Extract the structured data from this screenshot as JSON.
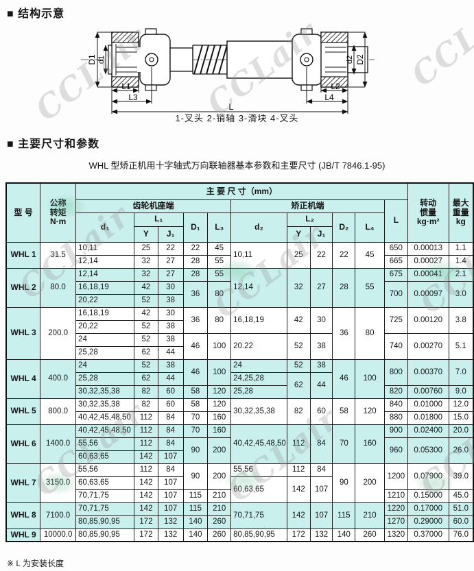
{
  "watermark": {
    "text": "CCLair"
  },
  "sections": {
    "structure_heading": "■ 结构示意",
    "params_heading": "■ 主要尺寸和参数"
  },
  "drawing": {
    "caption": "1-叉头  2-销轴  3-滑块  4-叉头",
    "dim_labels": {
      "D1": "D1",
      "d1": "d1",
      "L1": "L1",
      "L3": "L3",
      "L": "L",
      "L2": "L2",
      "L4": "L4",
      "d2": "d2",
      "D2": "D2"
    }
  },
  "table": {
    "title": "WHL 型矫正机用十字轴式万向联轴器基本参数和主要尺寸 (JB/T 7846.1-95)",
    "footnote": "※ L 为安装长度",
    "header_rows": [
      {
        "cells": [
          {
            "t": "型 号",
            "rs": 4,
            "name": "header-model"
          },
          {
            "t": "公称\n转矩\nN·m",
            "rs": 4,
            "name": "header-torque"
          },
          {
            "t": "主 要 尺 寸（mm）",
            "cs": 11,
            "name": "header-main-dims"
          },
          {
            "t": "转动\n惯量\nkg·m²",
            "rs": 4,
            "name": "header-inertia"
          },
          {
            "t": "最大\n重量\nkg",
            "rs": 4,
            "name": "header-max-weight"
          }
        ]
      },
      {
        "cells": [
          {
            "t": "齿轮机座端",
            "cs": 5,
            "name": "header-gear-end"
          },
          {
            "t": "矫正机端",
            "cs": 5,
            "name": "header-straightener-end"
          },
          {
            "t": "L",
            "rs": 3,
            "name": "header-L"
          }
        ]
      },
      {
        "cells": [
          {
            "t": "d₁",
            "rs": 2
          },
          {
            "t": "L₁",
            "cs": 2
          },
          {
            "t": "D₁",
            "rs": 2
          },
          {
            "t": "L₃",
            "rs": 2
          },
          {
            "t": "d₂",
            "rs": 2
          },
          {
            "t": "L₂",
            "cs": 2
          },
          {
            "t": "D₂",
            "rs": 2
          },
          {
            "t": "L₄",
            "rs": 2
          }
        ]
      },
      {
        "cells": [
          {
            "t": "Y"
          },
          {
            "t": "J₁"
          },
          {
            "t": "Y"
          },
          {
            "t": "J₁"
          }
        ]
      }
    ],
    "body_rows": [
      {
        "bg": "w",
        "cells": [
          {
            "t": "WHL 1",
            "rs": 2,
            "cls": "model"
          },
          {
            "t": "31.5",
            "rs": 2
          },
          {
            "t": "10,11",
            "cls": "dl"
          },
          {
            "t": "25"
          },
          {
            "t": "22"
          },
          {
            "t": "22"
          },
          {
            "t": "45"
          },
          {
            "t": "10,11",
            "rs": 2,
            "cls": "dl"
          },
          {
            "t": "25",
            "rs": 2
          },
          {
            "t": "22",
            "rs": 2
          },
          {
            "t": "22",
            "rs": 2
          },
          {
            "t": "45",
            "rs": 2
          },
          {
            "t": "650"
          },
          {
            "t": "0.00013"
          },
          {
            "t": "1.1"
          }
        ]
      },
      {
        "bg": "w",
        "cells": [
          {
            "t": "12,14",
            "cls": "dl"
          },
          {
            "t": "32"
          },
          {
            "t": "27"
          },
          {
            "t": "28"
          },
          {
            "t": "55"
          },
          {
            "t": "665"
          },
          {
            "t": "0.00027"
          },
          {
            "t": "1.4"
          }
        ]
      },
      {
        "bg": "c",
        "cells": [
          {
            "t": "WHL 2",
            "rs": 3,
            "cls": "model"
          },
          {
            "t": "80.0",
            "rs": 3
          },
          {
            "t": "12,14",
            "cls": "dl"
          },
          {
            "t": "32"
          },
          {
            "t": "27"
          },
          {
            "t": "28"
          },
          {
            "t": "55"
          },
          {
            "t": "12,14",
            "rs": 3,
            "cls": "dl"
          },
          {
            "t": "32",
            "rs": 3
          },
          {
            "t": "27",
            "rs": 3
          },
          {
            "t": "28",
            "rs": 3
          },
          {
            "t": "55",
            "rs": 3
          },
          {
            "t": "675"
          },
          {
            "t": "0.00041"
          },
          {
            "t": "2.1"
          }
        ]
      },
      {
        "bg": "c",
        "cells": [
          {
            "t": "16,18,19",
            "cls": "dl"
          },
          {
            "t": "42"
          },
          {
            "t": "30"
          },
          {
            "t": "36",
            "rs": 2
          },
          {
            "t": "80",
            "rs": 2
          },
          {
            "t": "700",
            "rs": 2
          },
          {
            "t": "0.00097",
            "rs": 2
          },
          {
            "t": "3.0",
            "rs": 2
          }
        ]
      },
      {
        "bg": "c",
        "cells": [
          {
            "t": "20,22",
            "cls": "dl"
          },
          {
            "t": "52"
          },
          {
            "t": "38"
          }
        ]
      },
      {
        "bg": "w",
        "cells": [
          {
            "t": "WHL 3",
            "rs": 4,
            "cls": "model"
          },
          {
            "t": "200.0",
            "rs": 4
          },
          {
            "t": "16,18,19",
            "cls": "dl"
          },
          {
            "t": "42"
          },
          {
            "t": "30"
          },
          {
            "t": "36",
            "rs": 2
          },
          {
            "t": "80",
            "rs": 2
          },
          {
            "t": "16,18,19",
            "rs": 2,
            "cls": "dl"
          },
          {
            "t": "42",
            "rs": 2
          },
          {
            "t": "30",
            "rs": 2
          },
          {
            "t": "36",
            "rs": 4
          },
          {
            "t": "80",
            "rs": 4
          },
          {
            "t": "725",
            "rs": 2
          },
          {
            "t": "0.00120",
            "rs": 2
          },
          {
            "t": "3.8",
            "rs": 2
          }
        ]
      },
      {
        "bg": "w",
        "cells": [
          {
            "t": "20,22",
            "cls": "dl"
          },
          {
            "t": "52"
          },
          {
            "t": "38"
          }
        ]
      },
      {
        "bg": "w",
        "cells": [
          {
            "t": "24",
            "cls": "dl"
          },
          {
            "t": "52"
          },
          {
            "t": "38"
          },
          {
            "t": "46",
            "rs": 2
          },
          {
            "t": "100",
            "rs": 2
          },
          {
            "t": "20.22",
            "rs": 2,
            "cls": "dl"
          },
          {
            "t": "52",
            "rs": 2
          },
          {
            "t": "38",
            "rs": 2
          },
          {
            "t": "740",
            "rs": 2
          },
          {
            "t": "0.00270",
            "rs": 2
          },
          {
            "t": "5.1",
            "rs": 2
          }
        ]
      },
      {
        "bg": "w",
        "cells": [
          {
            "t": "25,28",
            "cls": "dl"
          },
          {
            "t": "62"
          },
          {
            "t": "44"
          }
        ]
      },
      {
        "bg": "c",
        "cells": [
          {
            "t": "WHL 4",
            "rs": 3,
            "cls": "model"
          },
          {
            "t": "400.0",
            "rs": 3
          },
          {
            "t": "24",
            "cls": "dl"
          },
          {
            "t": "52"
          },
          {
            "t": "38"
          },
          {
            "t": "46",
            "rs": 2
          },
          {
            "t": "100",
            "rs": 2
          },
          {
            "t": "24",
            "cls": "dl"
          },
          {
            "t": "52"
          },
          {
            "t": "38"
          },
          {
            "t": "46",
            "rs": 3
          },
          {
            "t": "100",
            "rs": 3
          },
          {
            "t": "800",
            "rs": 2
          },
          {
            "t": "0.00370",
            "rs": 2
          },
          {
            "t": "7.0",
            "rs": 2
          }
        ]
      },
      {
        "bg": "c",
        "cells": [
          {
            "t": "25,28",
            "cls": "dl"
          },
          {
            "t": "62"
          },
          {
            "t": "44"
          },
          {
            "t": "24,25,28",
            "cls": "dl"
          },
          {
            "t": "62",
            "rs": 2
          },
          {
            "t": "44",
            "rs": 2
          }
        ]
      },
      {
        "bg": "c",
        "cells": [
          {
            "t": "30,32,35,38",
            "cls": "dl"
          },
          {
            "t": "82"
          },
          {
            "t": "60"
          },
          {
            "t": "58"
          },
          {
            "t": "120"
          },
          {
            "t": "25,28",
            "cls": "dl"
          },
          {
            "t": "820"
          },
          {
            "t": "0.00760"
          },
          {
            "t": "9.0"
          }
        ]
      },
      {
        "bg": "w",
        "cells": [
          {
            "t": "WHL 5",
            "rs": 2,
            "cls": "model"
          },
          {
            "t": "800.0",
            "rs": 2
          },
          {
            "t": "30,32,35,38",
            "cls": "dl"
          },
          {
            "t": "82"
          },
          {
            "t": "60"
          },
          {
            "t": "58"
          },
          {
            "t": "120"
          },
          {
            "t": "30,32,35,38",
            "rs": 2,
            "cls": "dl"
          },
          {
            "t": "82",
            "rs": 2
          },
          {
            "t": "60",
            "rs": 2
          },
          {
            "t": "58",
            "rs": 2
          },
          {
            "t": "120",
            "rs": 2
          },
          {
            "t": "840"
          },
          {
            "t": "0.01000"
          },
          {
            "t": "12.0"
          }
        ]
      },
      {
        "bg": "w",
        "cells": [
          {
            "t": "40,42,45,48,50",
            "cls": "dl"
          },
          {
            "t": "112"
          },
          {
            "t": "84"
          },
          {
            "t": "70"
          },
          {
            "t": "160"
          },
          {
            "t": "880"
          },
          {
            "t": "0.01800"
          },
          {
            "t": "15.0"
          }
        ]
      },
      {
        "bg": "c",
        "cells": [
          {
            "t": "WHL 6",
            "rs": 3,
            "cls": "model"
          },
          {
            "t": "1400.0",
            "rs": 3
          },
          {
            "t": "40,42,45,48,50",
            "cls": "dl"
          },
          {
            "t": "112"
          },
          {
            "t": "84"
          },
          {
            "t": "70"
          },
          {
            "t": "160"
          },
          {
            "t": "40,42,45,48,50",
            "rs": 3,
            "cls": "dl"
          },
          {
            "t": "112",
            "rs": 3
          },
          {
            "t": "84",
            "rs": 3
          },
          {
            "t": "70",
            "rs": 3
          },
          {
            "t": "160",
            "rs": 3
          },
          {
            "t": "900"
          },
          {
            "t": "0.02400"
          },
          {
            "t": "20.0"
          }
        ]
      },
      {
        "bg": "c",
        "cells": [
          {
            "t": "55,56",
            "cls": "dl"
          },
          {
            "t": "112"
          },
          {
            "t": "84"
          },
          {
            "t": "90",
            "rs": 2
          },
          {
            "t": "200",
            "rs": 2
          },
          {
            "t": "960",
            "rs": 2
          },
          {
            "t": "0.05300",
            "rs": 2
          },
          {
            "t": "26.0",
            "rs": 2
          }
        ]
      },
      {
        "bg": "c",
        "cells": [
          {
            "t": "60,63,65",
            "cls": "dl"
          },
          {
            "t": "142"
          },
          {
            "t": "107"
          }
        ]
      },
      {
        "bg": "w",
        "cells": [
          {
            "t": "WHL 7",
            "rs": 3,
            "cls": "model"
          },
          {
            "t": "3150.0",
            "rs": 3
          },
          {
            "t": "55,56",
            "cls": "dl"
          },
          {
            "t": "112"
          },
          {
            "t": "84"
          },
          {
            "t": "90",
            "rs": 2
          },
          {
            "t": "200",
            "rs": 2
          },
          {
            "t": "55,56",
            "cls": "dl"
          },
          {
            "t": "112"
          },
          {
            "t": "84"
          },
          {
            "t": "90",
            "rs": 3
          },
          {
            "t": "200",
            "rs": 3
          },
          {
            "t": "1200",
            "rs": 2
          },
          {
            "t": "0.07900",
            "rs": 2
          },
          {
            "t": "39.0",
            "rs": 2
          }
        ]
      },
      {
        "bg": "w",
        "cells": [
          {
            "t": "60,63,65",
            "cls": "dl"
          },
          {
            "t": "142"
          },
          {
            "t": "107"
          },
          {
            "t": "60,63,65",
            "rs": 2,
            "cls": "dl"
          },
          {
            "t": "142",
            "rs": 2
          },
          {
            "t": "107",
            "rs": 2
          }
        ]
      },
      {
        "bg": "w",
        "cells": [
          {
            "t": "70,71,75",
            "cls": "dl"
          },
          {
            "t": "142"
          },
          {
            "t": "107"
          },
          {
            "t": "115"
          },
          {
            "t": "210"
          },
          {
            "t": "1210"
          },
          {
            "t": "0.15000"
          },
          {
            "t": "45.0"
          }
        ]
      },
      {
        "bg": "c",
        "cells": [
          {
            "t": "WHL 8",
            "rs": 2,
            "cls": "model"
          },
          {
            "t": "7100.0",
            "rs": 2
          },
          {
            "t": "70,71,75",
            "cls": "dl"
          },
          {
            "t": "142"
          },
          {
            "t": "107"
          },
          {
            "t": "115"
          },
          {
            "t": "210"
          },
          {
            "t": "70,71,75",
            "rs": 2,
            "cls": "dl"
          },
          {
            "t": "142",
            "rs": 2
          },
          {
            "t": "107",
            "rs": 2
          },
          {
            "t": "115",
            "rs": 2
          },
          {
            "t": "210",
            "rs": 2
          },
          {
            "t": "1220"
          },
          {
            "t": "0.17000"
          },
          {
            "t": "51.0"
          }
        ]
      },
      {
        "bg": "c",
        "cells": [
          {
            "t": "80,85,90,95",
            "cls": "dl"
          },
          {
            "t": "172"
          },
          {
            "t": "132"
          },
          {
            "t": "140"
          },
          {
            "t": "260"
          },
          {
            "t": "1270"
          },
          {
            "t": "0.29000"
          },
          {
            "t": "60.0"
          }
        ]
      },
      {
        "bg": "w",
        "cells": [
          {
            "t": "WHL 9",
            "cls": "model"
          },
          {
            "t": "10000.0"
          },
          {
            "t": "80,85,90,95",
            "cls": "dl"
          },
          {
            "t": "172"
          },
          {
            "t": "132"
          },
          {
            "t": "140"
          },
          {
            "t": "260"
          },
          {
            "t": "80,85,90,95",
            "cls": "dl"
          },
          {
            "t": "172"
          },
          {
            "t": "132"
          },
          {
            "t": "140"
          },
          {
            "t": "260"
          },
          {
            "t": "1320"
          },
          {
            "t": "0.37000"
          },
          {
            "t": "76.0"
          }
        ]
      }
    ]
  }
}
